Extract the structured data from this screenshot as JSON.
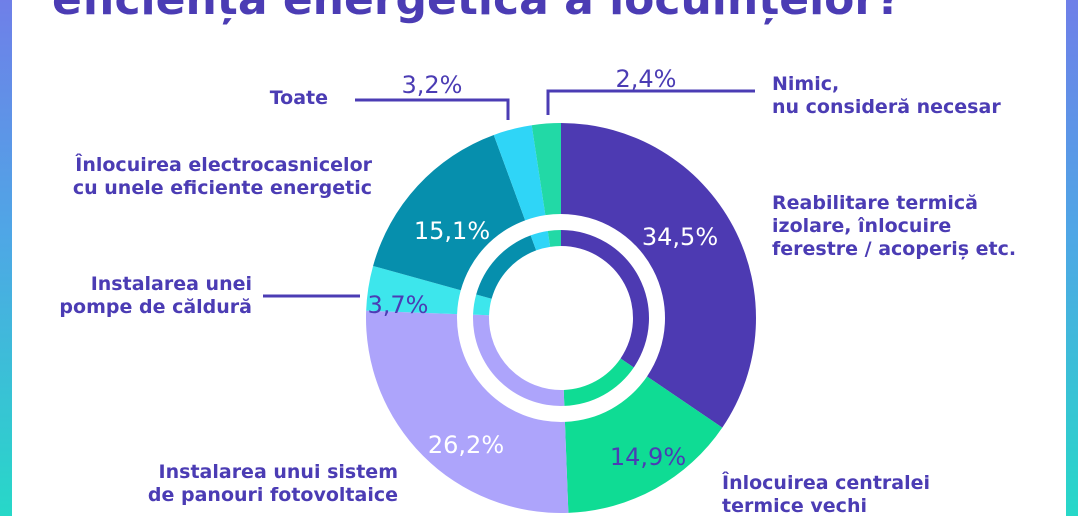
{
  "header": {
    "title": "eficiența energetică a locuințelor?"
  },
  "colors": {
    "background_top": "#6f7fe8",
    "background_bottom": "#27d8c8",
    "title": "#4b3cb4",
    "leader_line": "#4b3cb4"
  },
  "chart_data": {
    "type": "pie",
    "variant": "donut",
    "unit": "%",
    "slices": [
      {
        "label": "Reabilitare termică izolare, înlocuire ferestre / acoperiș etc.",
        "label_lines": [
          "Reabilitare termică",
          "izolare, înlocuire",
          "ferestre / acoperiș etc."
        ],
        "value": 34.5,
        "value_text": "34,5%",
        "color": "#4d3ab2",
        "text_color": "#ffffff"
      },
      {
        "label": "Înlocuirea centralei termice vechi",
        "label_lines": [
          "Înlocuirea centralei",
          "termice vechi"
        ],
        "value": 14.9,
        "value_text": "14,9%",
        "color": "#0fdc94",
        "text_color": "#4b3cb4"
      },
      {
        "label": "Instalarea unui sistem de panouri fotovoltaice",
        "label_lines": [
          "Instalarea unui sistem",
          "de panouri fotovoltaice"
        ],
        "value": 26.2,
        "value_text": "26,2%",
        "color": "#ada4fb",
        "text_color": "#ffffff"
      },
      {
        "label": "Instalarea unei pompe de căldură",
        "label_lines": [
          "Instalarea unei",
          "pompe de căldură"
        ],
        "value": 3.7,
        "value_text": "3,7%",
        "color": "#3de6ec",
        "text_color": "#4b3cb4"
      },
      {
        "label": "Înlocuirea electrocasnicelor cu unele eficiente energetic",
        "label_lines": [
          "Înlocuirea electrocasnicelor",
          "cu unele eficiente energetic"
        ],
        "value": 15.1,
        "value_text": "15,1%",
        "color": "#068fad",
        "text_color": "#ffffff"
      },
      {
        "label": "Toate",
        "label_lines": [
          "Toate"
        ],
        "value": 3.2,
        "value_text": "3,2%",
        "color": "#2fd5f7",
        "text_color": "#4b3cb4"
      },
      {
        "label": "Nimic, nu consideră necesar",
        "label_lines": [
          "Nimic,",
          "nu consideră necesar"
        ],
        "value": 2.4,
        "value_text": "2,4%",
        "color": "#22d9a6",
        "text_color": "#4b3cb4"
      }
    ]
  }
}
